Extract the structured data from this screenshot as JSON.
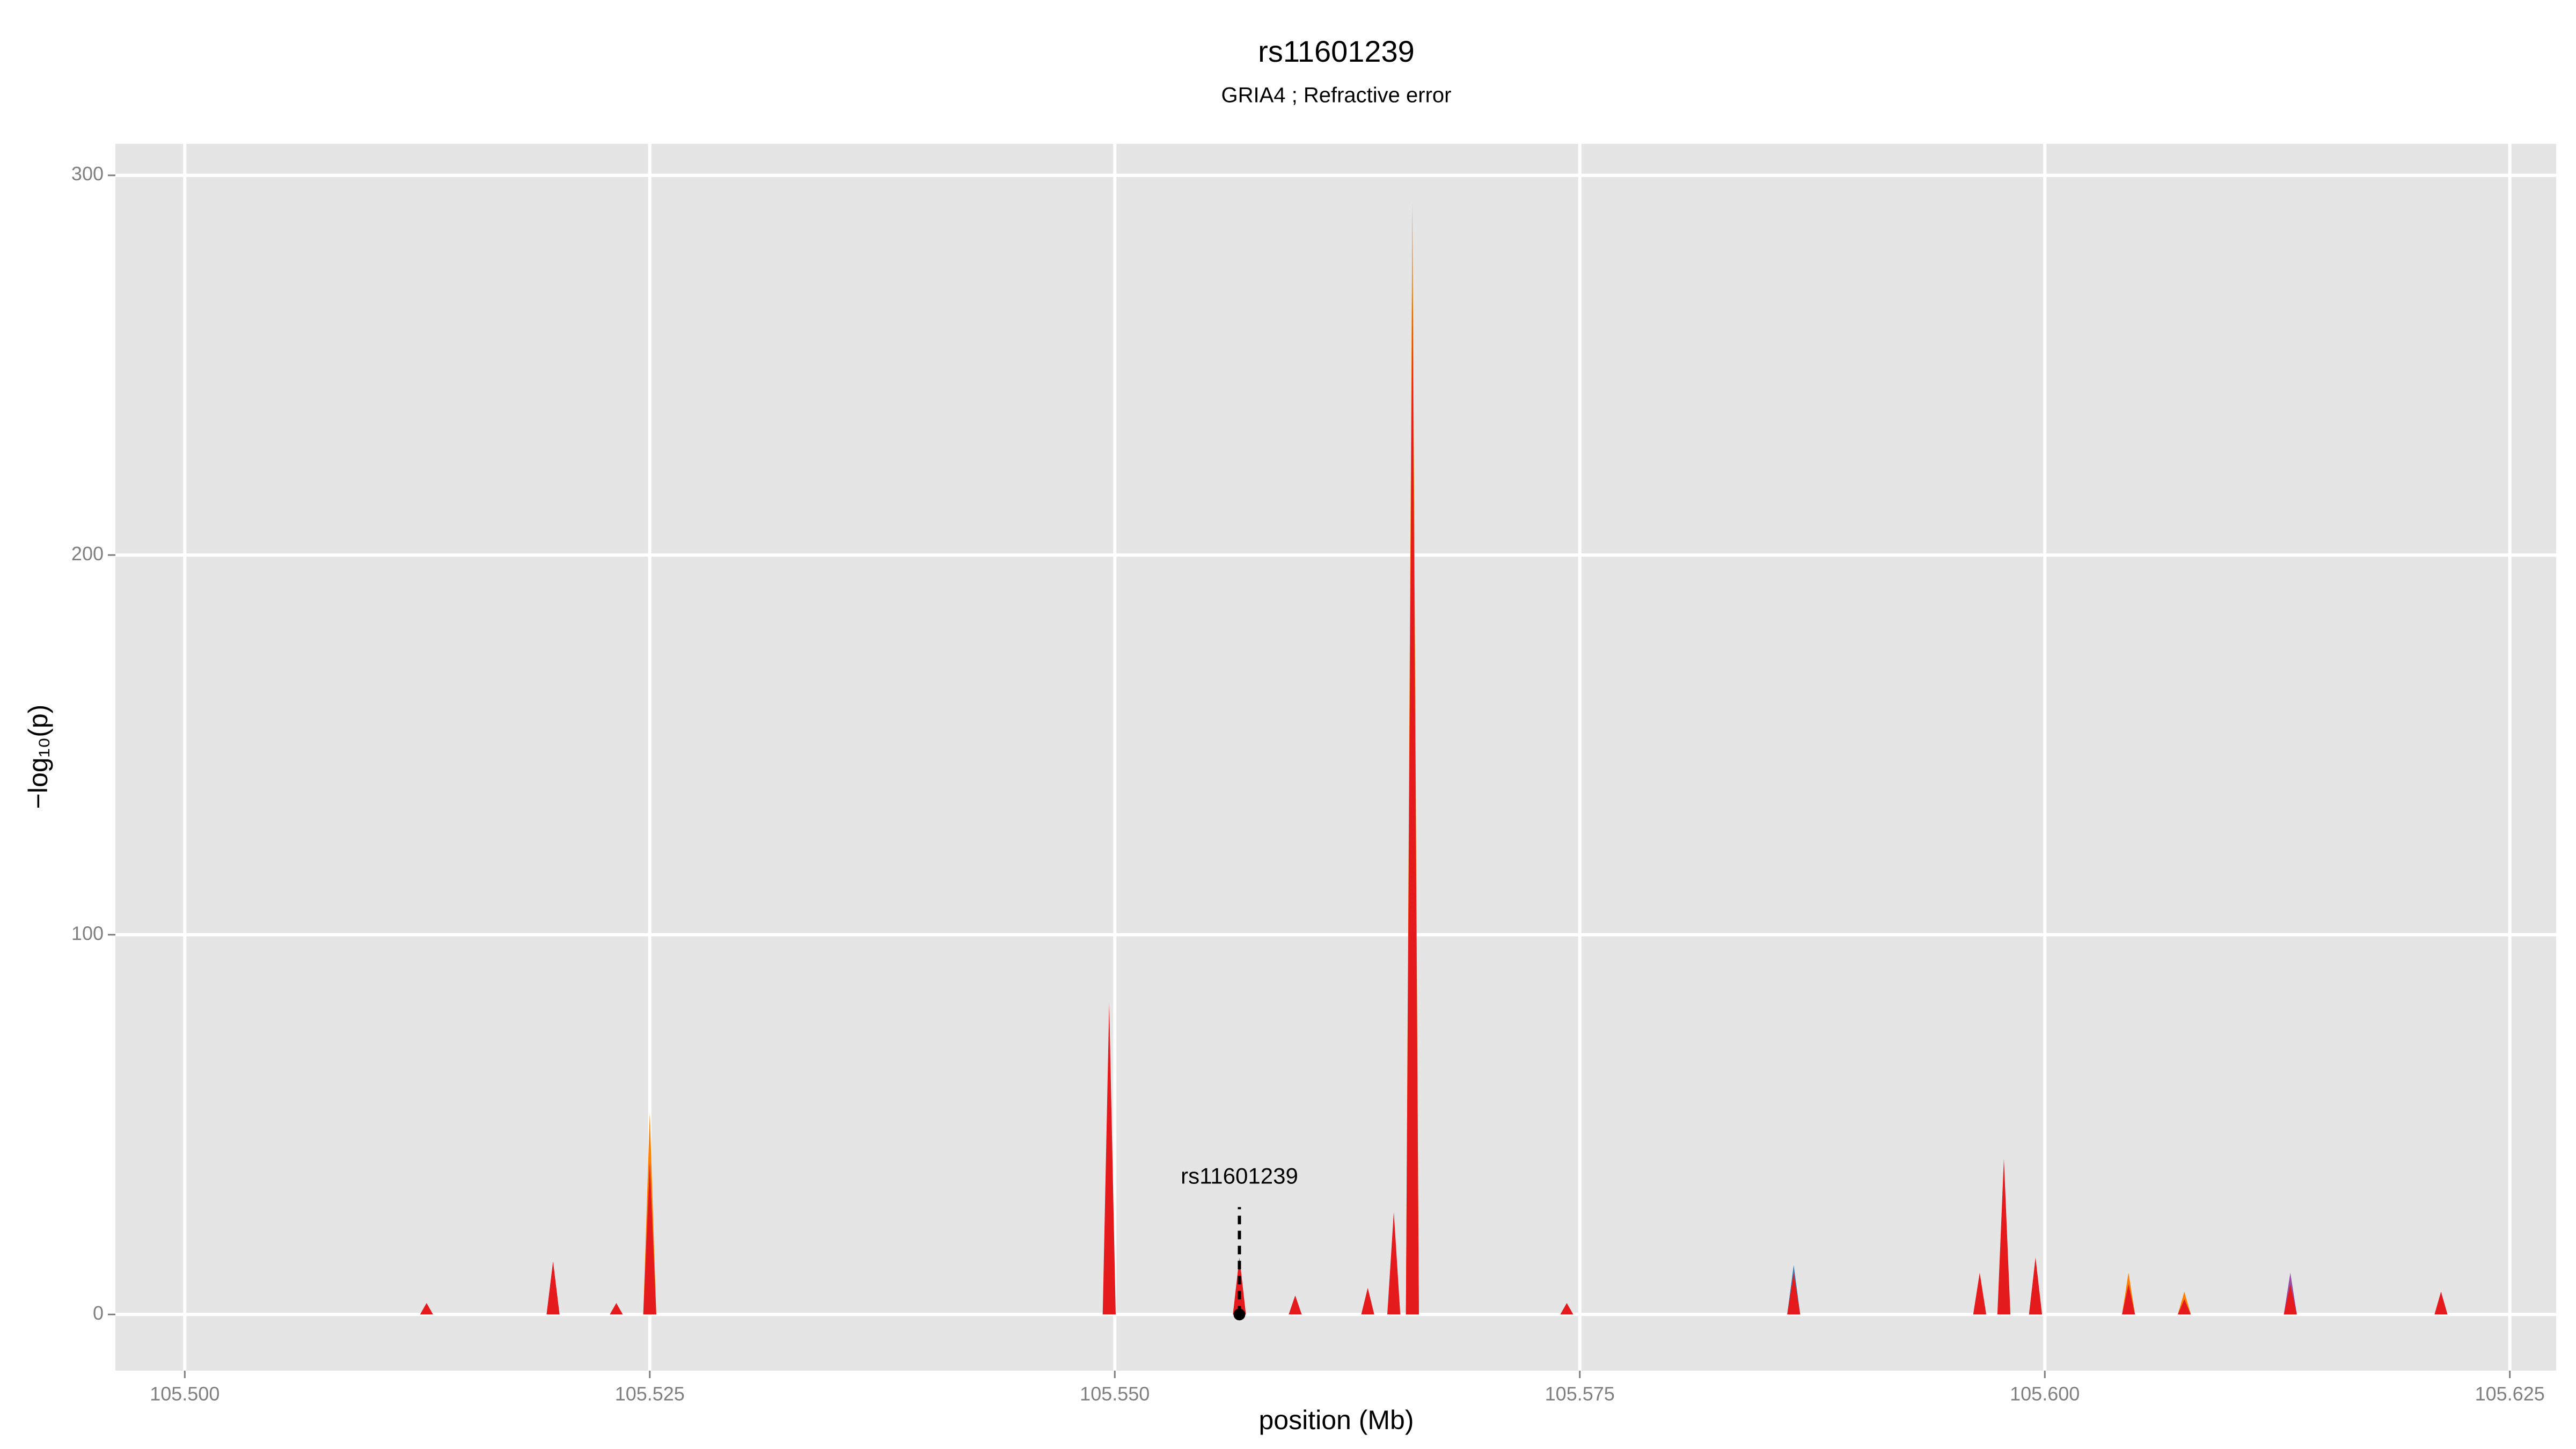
{
  "chart_data": {
    "type": "area",
    "title": "rs11601239",
    "subtitle": "GRIA4 ; Refractive error",
    "xlabel": "position (Mb)",
    "ylabel": "−log₁₀(p)",
    "x": [
      105.5025,
      105.51265,
      105.513,
      105.51335,
      105.51945,
      105.5198,
      105.52015,
      105.52285,
      105.5232,
      105.52355,
      105.52465,
      105.525,
      105.52535,
      105.54935,
      105.5497,
      105.55005,
      105.55635,
      105.5567,
      105.55705,
      105.55935,
      105.5597,
      105.56005,
      105.56325,
      105.5636,
      105.56395,
      105.56465,
      105.565,
      105.56535,
      105.56565,
      105.566,
      105.56635,
      105.57395,
      105.5743,
      105.57465,
      105.58615,
      105.5865,
      105.58685,
      105.59615,
      105.5965,
      105.59685,
      105.59745,
      105.5978,
      105.59815,
      105.59915,
      105.5995,
      105.59985,
      105.60415,
      105.6045,
      105.60485,
      105.60715,
      105.6075,
      105.60785,
      105.61285,
      105.6132,
      105.61355,
      105.62095,
      105.6213,
      105.62165,
      105.622
    ],
    "series": [
      {
        "color": "#ff7f00",
        "values": [
          0,
          0,
          0,
          0,
          0,
          0,
          0,
          0,
          0,
          0,
          0,
          53,
          0,
          0,
          0,
          0,
          0,
          0,
          0,
          0,
          0,
          0,
          0,
          0,
          0,
          0,
          0,
          0,
          0,
          293,
          0,
          0,
          0,
          0,
          0,
          0,
          0,
          0,
          0,
          0,
          0,
          0,
          0,
          0,
          0,
          0,
          0,
          11,
          0,
          0,
          6,
          0,
          0,
          0,
          0,
          0,
          0,
          0,
          0
        ]
      },
      {
        "color": "#377eb8",
        "values": [
          0,
          0,
          0,
          0,
          0,
          0,
          0,
          0,
          0,
          0,
          0,
          0,
          0,
          0,
          0,
          0,
          0,
          0,
          0,
          0,
          0,
          0,
          0,
          0,
          0,
          0,
          0,
          0,
          0,
          0,
          0,
          0,
          0,
          0,
          0,
          13,
          0,
          0,
          0,
          0,
          0,
          0,
          0,
          0,
          14,
          0,
          0,
          0,
          0,
          0,
          0,
          0,
          0,
          0,
          0,
          0,
          0,
          0,
          0
        ]
      },
      {
        "color": "#984ea3",
        "values": [
          0,
          0,
          0,
          0,
          0,
          0,
          0,
          0,
          0,
          0,
          0,
          0,
          0,
          0,
          0,
          0,
          0,
          0,
          0,
          0,
          0,
          0,
          0,
          0,
          0,
          0,
          0,
          0,
          0,
          0,
          0,
          0,
          0,
          0,
          0,
          0,
          0,
          0,
          0,
          0,
          0,
          0,
          0,
          0,
          0,
          0,
          0,
          0,
          0,
          0,
          0,
          0,
          0,
          11,
          0,
          0,
          0,
          0,
          0
        ]
      },
      {
        "color": "#e41a1c",
        "values": [
          0,
          0,
          3,
          0,
          0,
          14,
          0,
          0,
          3,
          0,
          0,
          40,
          0,
          0,
          82,
          0,
          0,
          15,
          0,
          0,
          5,
          0,
          0,
          7,
          0,
          0,
          27,
          0,
          0,
          270,
          0,
          0,
          3,
          0,
          0,
          11,
          0,
          0,
          11,
          0,
          0,
          41,
          0,
          0,
          15,
          0,
          0,
          8,
          0,
          0,
          4,
          0,
          0,
          8,
          0,
          0,
          6,
          0,
          0
        ]
      }
    ],
    "annotation": {
      "label": "rs11601239",
      "x": 105.5567,
      "y": 0
    },
    "xlim": [
      105.49627,
      105.62749
    ],
    "ylim": [
      -14.8,
      308.3
    ],
    "xticks": [
      {
        "value": 105.5,
        "label": "105.500"
      },
      {
        "value": 105.525,
        "label": "105.525"
      },
      {
        "value": 105.55,
        "label": "105.550"
      },
      {
        "value": 105.575,
        "label": "105.575"
      },
      {
        "value": 105.6,
        "label": "105.600"
      },
      {
        "value": 105.625,
        "label": "105.625"
      }
    ],
    "yticks": [
      0,
      100,
      200,
      300
    ],
    "grid": true
  }
}
